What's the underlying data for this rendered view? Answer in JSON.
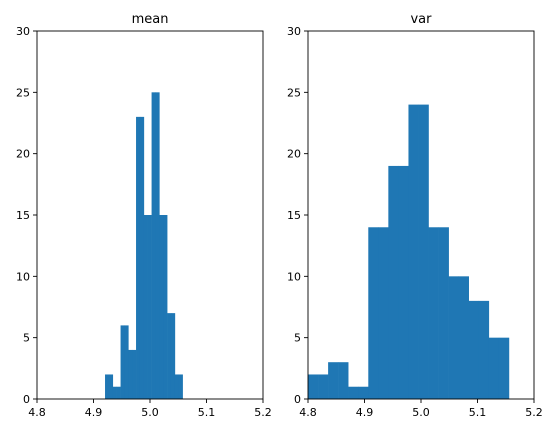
{
  "chart_data": [
    {
      "type": "bar",
      "title": "mean",
      "color": "#1f77b4",
      "xlim": [
        4.8,
        5.2
      ],
      "ylim": [
        0,
        30
      ],
      "x_ticks": [
        4.8,
        4.9,
        5.0,
        5.1,
        5.2
      ],
      "x_tick_labels": [
        "4.8",
        "4.9",
        "5.0",
        "5.1",
        "5.2"
      ],
      "y_ticks": [
        0,
        5,
        10,
        15,
        20,
        25,
        30
      ],
      "y_tick_labels": [
        "0",
        "5",
        "10",
        "15",
        "20",
        "25",
        "30"
      ],
      "bin_edges": [
        4.9204,
        4.9273,
        4.9341,
        4.941,
        4.9479,
        4.9547,
        4.9616,
        4.9685,
        4.9753,
        4.9822,
        4.9891,
        4.9959,
        5.0028,
        5.0097,
        5.0165,
        5.0234,
        5.0303,
        5.0371,
        5.044,
        5.0509,
        5.0577
      ],
      "values": [
        2,
        2,
        1,
        1,
        6,
        6,
        4,
        4,
        23,
        23,
        15,
        15,
        25,
        25,
        15,
        15,
        7,
        7,
        2,
        2
      ]
    },
    {
      "type": "bar",
      "title": "var",
      "color": "#1f77b4",
      "xlim": [
        4.8,
        5.2
      ],
      "ylim": [
        0,
        30
      ],
      "x_ticks": [
        4.8,
        4.9,
        5.0,
        5.1,
        5.2
      ],
      "x_tick_labels": [
        "4.8",
        "4.9",
        "5.0",
        "5.1",
        "5.2"
      ],
      "y_ticks": [
        0,
        5,
        10,
        15,
        20,
        25,
        30
      ],
      "y_tick_labels": [
        "0",
        "5",
        "10",
        "15",
        "20",
        "25",
        "30"
      ],
      "bin_edges": [
        4.8,
        4.8178,
        4.8356,
        4.8533,
        4.8711,
        4.8889,
        4.9067,
        4.9244,
        4.9422,
        4.96,
        4.9778,
        4.9956,
        5.0133,
        5.0311,
        5.0489,
        5.0667,
        5.0844,
        5.1022,
        5.12,
        5.1378,
        5.1556
      ],
      "values": [
        2,
        2,
        3,
        3,
        1,
        1,
        14,
        14,
        19,
        19,
        24,
        24,
        14,
        14,
        10,
        10,
        8,
        8,
        5,
        5
      ]
    }
  ]
}
